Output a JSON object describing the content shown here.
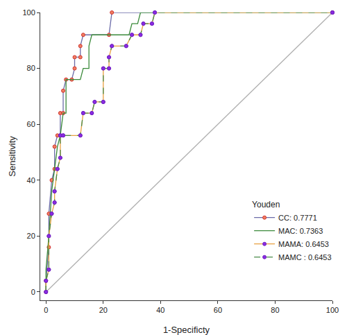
{
  "chart_data": {
    "type": "line",
    "x_label": "1-Specificty",
    "y_label": "Sensitivity",
    "legend_title": "Youden",
    "legend": "lower right",
    "grid": false,
    "xlim": [
      -2,
      100
    ],
    "ylim": [
      -3,
      100
    ],
    "xticks": [
      0,
      20,
      40,
      60,
      80,
      100
    ],
    "yticks": [
      0,
      20,
      40,
      60,
      80,
      100
    ],
    "series": [
      {
        "name": "CC: 0.7771",
        "color": "#6b6ba8",
        "marker": "circle",
        "line_style": "solid",
        "x": [
          0,
          0,
          1,
          1,
          2,
          3,
          3,
          4,
          5,
          5,
          6,
          6,
          7,
          9,
          10,
          10,
          12,
          12,
          13,
          22,
          23,
          100
        ],
        "values": [
          0,
          4,
          16,
          28,
          40,
          44,
          52,
          56,
          56,
          64,
          64,
          72,
          76,
          76,
          80,
          84,
          84,
          88,
          92,
          92,
          100,
          100
        ]
      },
      {
        "name": "MAC: 0.7363",
        "color": "#3a8a3a",
        "marker": "none",
        "line_style": "solid",
        "x": [
          0,
          0,
          1,
          2,
          3,
          4,
          5,
          6,
          7,
          7,
          12,
          13,
          15,
          15,
          16,
          29,
          30,
          32,
          33,
          100
        ],
        "values": [
          0,
          8,
          20,
          36,
          44,
          52,
          56,
          64,
          64,
          76,
          76,
          80,
          80,
          88,
          92,
          92,
          96,
          96,
          100,
          100
        ]
      },
      {
        "name": "MAMA: 0.6453",
        "color": "#e8a040",
        "marker": "circle",
        "line_style": "solid",
        "x": [
          0,
          0,
          1,
          1,
          2,
          3,
          3,
          4,
          5,
          5,
          6,
          12,
          13,
          16,
          17,
          20,
          20,
          22,
          22,
          23,
          28,
          30,
          33,
          34,
          37,
          38,
          100
        ],
        "values": [
          0,
          4,
          8,
          20,
          28,
          32,
          36,
          44,
          48,
          56,
          56,
          56,
          64,
          64,
          68,
          68,
          80,
          80,
          84,
          88,
          88,
          92,
          92,
          96,
          96,
          100,
          100
        ]
      },
      {
        "name": "MAMC : 0.6453",
        "color": "#4a8a4a",
        "marker": "circle",
        "line_style": "dashed",
        "x": [
          0,
          0,
          1,
          1,
          2,
          3,
          3,
          4,
          5,
          5,
          6,
          12,
          13,
          16,
          17,
          20,
          20,
          22,
          22,
          23,
          28,
          30,
          33,
          34,
          37,
          38,
          100
        ],
        "values": [
          0,
          4,
          8,
          20,
          28,
          32,
          36,
          44,
          48,
          56,
          56,
          56,
          64,
          64,
          68,
          68,
          80,
          80,
          84,
          88,
          88,
          92,
          92,
          96,
          96,
          100,
          100
        ]
      },
      {
        "color": "#b0b0b0",
        "marker": "none",
        "line_style": "solid",
        "x": [
          0,
          100
        ],
        "values": [
          0,
          100
        ]
      }
    ]
  }
}
